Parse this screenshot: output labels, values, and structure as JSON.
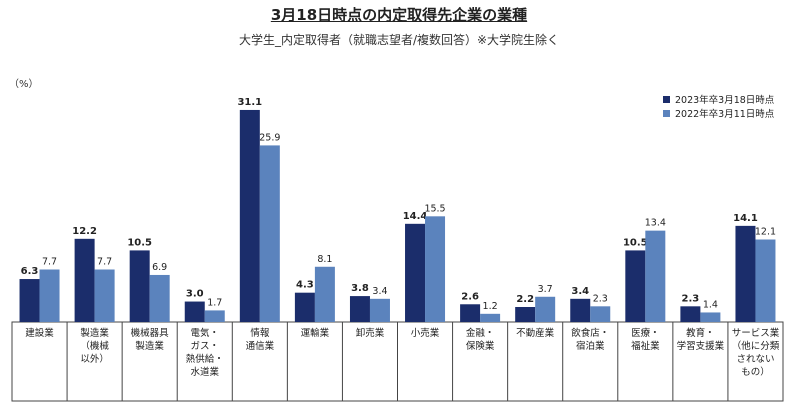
{
  "header": {
    "title": "3月18日時点の内定取得先企業の業種",
    "subtitle": "大学生_内定取得者（就職志望者/複数回答）※大学院生除く",
    "unit": "（%）"
  },
  "colors": {
    "series_2023": "#1b2d6b",
    "series_2022": "#5b83bd"
  },
  "chart_data": {
    "type": "bar",
    "categories": [
      [
        "建設業"
      ],
      [
        "製造業",
        "（機械",
        "以外）"
      ],
      [
        "機械器具",
        "製造業"
      ],
      [
        "電気・",
        "ガス・",
        "熱供給・",
        "水道業"
      ],
      [
        "情報",
        "通信業"
      ],
      [
        "運輸業"
      ],
      [
        "卸売業"
      ],
      [
        "小売業"
      ],
      [
        "金融・",
        "保険業"
      ],
      [
        "不動産業"
      ],
      [
        "飲食店・",
        "宿泊業"
      ],
      [
        "医療・",
        "福祉業"
      ],
      [
        "教育・",
        "学習支援業"
      ],
      [
        "サービス業",
        "（他に分類",
        "されない",
        "もの）"
      ]
    ],
    "series": [
      {
        "name": "2023年卒3月18日時点",
        "values": [
          6.3,
          12.2,
          10.5,
          3.0,
          31.1,
          4.3,
          3.8,
          14.4,
          2.6,
          2.2,
          3.4,
          10.5,
          2.3,
          14.1
        ],
        "labels": [
          "6.3",
          "12.2",
          "10.5",
          "3.0",
          "31.1",
          "4.3",
          "3.8",
          "14.4",
          "2.6",
          "2.2",
          "3.4",
          "10.5",
          "2.3",
          "14.1"
        ]
      },
      {
        "name": "2022年卒3月11日時点",
        "values": [
          7.7,
          7.7,
          6.9,
          1.7,
          25.9,
          8.1,
          3.4,
          15.5,
          1.2,
          3.7,
          2.3,
          13.4,
          1.4,
          12.1
        ],
        "labels": [
          "7.7",
          "7.7",
          "6.9",
          "1.7",
          "25.9",
          "8.1",
          "3.4",
          "15.5",
          "1.2",
          "3.7",
          "2.3",
          "13.4",
          "1.4",
          "12.1"
        ]
      }
    ],
    "ylim": [
      0,
      33
    ],
    "grid": false,
    "legend": "top-right"
  }
}
